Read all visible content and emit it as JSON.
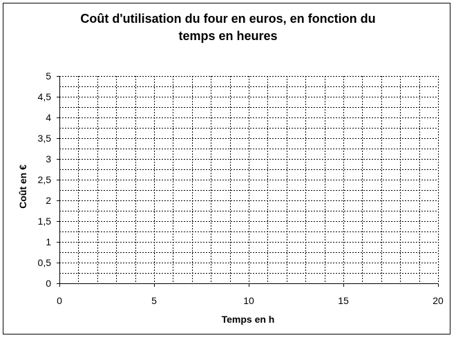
{
  "chart_data": {
    "type": "line",
    "title_line1": "Coût d'utilisation du four en euros, en fonction du",
    "title_line2": "temps en heures",
    "xlabel": "Temps en h",
    "ylabel": "Coût en €",
    "xlim": [
      0,
      20
    ],
    "ylim": [
      0,
      5
    ],
    "xticks": [
      0,
      5,
      10,
      15,
      20
    ],
    "xtick_labels": [
      "0",
      "5",
      "10",
      "15",
      "20"
    ],
    "yticks": [
      0,
      0.5,
      1,
      1.5,
      2,
      2.5,
      3,
      3.5,
      4,
      4.5,
      5
    ],
    "ytick_labels": [
      "0",
      "0,5",
      "1",
      "1,5",
      "2",
      "2,5",
      "3",
      "3,5",
      "4",
      "4,5",
      "5"
    ],
    "x_minor_step": 1,
    "y_minor_step": 0.25,
    "grid": true,
    "grid_style": "dotted",
    "series": []
  }
}
